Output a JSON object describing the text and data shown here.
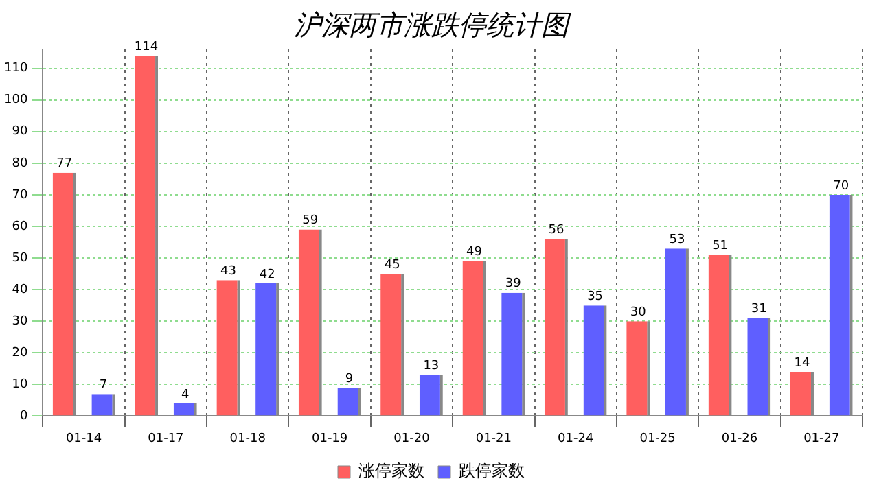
{
  "chart_data": {
    "type": "bar",
    "title": "沪深两市涨跌停统计图",
    "categories": [
      "01-14",
      "01-17",
      "01-18",
      "01-19",
      "01-20",
      "01-21",
      "01-24",
      "01-25",
      "01-26",
      "01-27"
    ],
    "series": [
      {
        "name": "涨停家数",
        "color": "#ff5f5f",
        "values": [
          77,
          114,
          43,
          59,
          45,
          49,
          56,
          30,
          51,
          14
        ]
      },
      {
        "name": "跌停家数",
        "color": "#5f5fff",
        "values": [
          7,
          4,
          42,
          9,
          13,
          39,
          35,
          53,
          31,
          70
        ]
      }
    ],
    "ylim": [
      0,
      116
    ],
    "yticks": [
      0,
      10,
      20,
      30,
      40,
      50,
      60,
      70,
      80,
      90,
      100,
      110
    ],
    "grid": true,
    "legend": "bottom",
    "data_labels": true
  }
}
